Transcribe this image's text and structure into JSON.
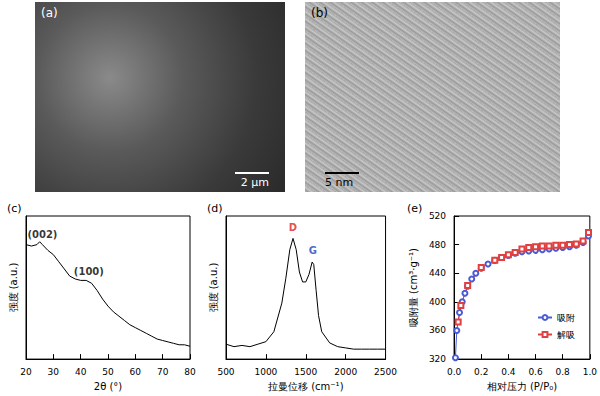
{
  "images": [
    {
      "label": "(a)",
      "scale_bar": "2 μm"
    },
    {
      "label": "(b)",
      "scale_bar": "5 nm"
    }
  ],
  "chart_data": [
    {
      "type": "line",
      "title": "(c)",
      "xlabel": "2θ (°)",
      "ylabel": "强度 (a.u.)",
      "x": [
        20,
        22,
        24,
        25,
        26,
        28,
        30,
        32,
        34,
        36,
        38,
        40,
        42,
        44,
        46,
        48,
        50,
        52,
        54,
        56,
        58,
        60,
        62,
        64,
        66,
        68,
        70,
        72,
        74,
        76,
        78,
        80
      ],
      "values": [
        0.8,
        0.79,
        0.8,
        0.82,
        0.8,
        0.76,
        0.73,
        0.68,
        0.63,
        0.58,
        0.56,
        0.55,
        0.55,
        0.53,
        0.48,
        0.42,
        0.37,
        0.33,
        0.3,
        0.27,
        0.24,
        0.22,
        0.2,
        0.18,
        0.16,
        0.14,
        0.13,
        0.12,
        0.11,
        0.1,
        0.1,
        0.09
      ],
      "color": "#000000",
      "xlim": [
        20,
        80
      ],
      "xticks": [
        20,
        30,
        40,
        50,
        60,
        70,
        80
      ],
      "ylim": [
        0,
        1
      ],
      "tick_labels": "x",
      "grid": false,
      "annotations": [
        {
          "text": "(002)",
          "x": 26,
          "y": 0.87,
          "color": "#000000"
        },
        {
          "text": "(100)",
          "x": 43,
          "y": 0.61,
          "color": "#000000"
        }
      ]
    },
    {
      "type": "line",
      "title": "(d)",
      "xlabel": "拉曼位移 (cm⁻¹)",
      "ylabel": "强度 (a.u.)",
      "x": [
        500,
        600,
        700,
        800,
        900,
        1000,
        1100,
        1200,
        1250,
        1300,
        1340,
        1380,
        1420,
        1460,
        1500,
        1540,
        1580,
        1600,
        1630,
        1660,
        1700,
        1800,
        1900,
        2000,
        2100,
        2200,
        2300,
        2400,
        2500
      ],
      "values": [
        0.12,
        0.1,
        0.11,
        0.1,
        0.12,
        0.14,
        0.22,
        0.45,
        0.65,
        0.88,
        0.97,
        0.88,
        0.7,
        0.62,
        0.62,
        0.68,
        0.78,
        0.76,
        0.55,
        0.35,
        0.22,
        0.13,
        0.1,
        0.09,
        0.08,
        0.08,
        0.08,
        0.08,
        0.08
      ],
      "color": "#000000",
      "xlim": [
        500,
        2500
      ],
      "xticks": [
        500,
        1000,
        1500,
        2000,
        2500
      ],
      "ylim": [
        0,
        1.15
      ],
      "tick_labels": "x",
      "grid": false,
      "annotations": [
        {
          "text": "D",
          "x": 1340,
          "y": 1.06,
          "color": "#e02020"
        },
        {
          "text": "G",
          "x": 1590,
          "y": 0.87,
          "color": "#2040c0"
        }
      ]
    },
    {
      "type": "line",
      "title": "(e)",
      "xlabel": "相对压力 (P/P₀)",
      "ylabel": "吸附量 (cm³·g⁻¹)",
      "series": [
        {
          "name": "吸附",
          "color": "#4a5bd6",
          "marker": "circle",
          "x": [
            0.01,
            0.02,
            0.04,
            0.06,
            0.08,
            0.1,
            0.13,
            0.16,
            0.2,
            0.25,
            0.3,
            0.35,
            0.4,
            0.45,
            0.5,
            0.55,
            0.6,
            0.65,
            0.7,
            0.75,
            0.8,
            0.85,
            0.9,
            0.95,
            0.99
          ],
          "values": [
            322,
            360,
            385,
            400,
            412,
            422,
            432,
            440,
            447,
            453,
            458,
            462,
            465,
            468,
            470,
            471,
            472,
            473,
            474,
            475,
            476,
            477,
            479,
            483,
            492
          ]
        },
        {
          "name": "解吸",
          "color": "#e04040",
          "marker": "square",
          "x": [
            0.99,
            0.95,
            0.9,
            0.85,
            0.8,
            0.75,
            0.7,
            0.65,
            0.6,
            0.55,
            0.5,
            0.45,
            0.4,
            0.35,
            0.3,
            0.2,
            0.1,
            0.05,
            0.03
          ],
          "values": [
            497,
            485,
            481,
            480,
            479,
            479,
            478,
            478,
            477,
            476,
            474,
            469,
            466,
            462,
            458,
            448,
            423,
            395,
            372
          ]
        }
      ],
      "xlim": [
        0,
        1
      ],
      "xticks": [
        {
          "value": 0,
          "label": "0.0"
        },
        0.2,
        0.4,
        0.6,
        0.8,
        {
          "value": 1,
          "label": "1.0"
        }
      ],
      "ylim": [
        320,
        520
      ],
      "yticks": [
        320,
        360,
        400,
        440,
        480,
        520
      ],
      "legend": "lower right",
      "grid": false
    }
  ]
}
